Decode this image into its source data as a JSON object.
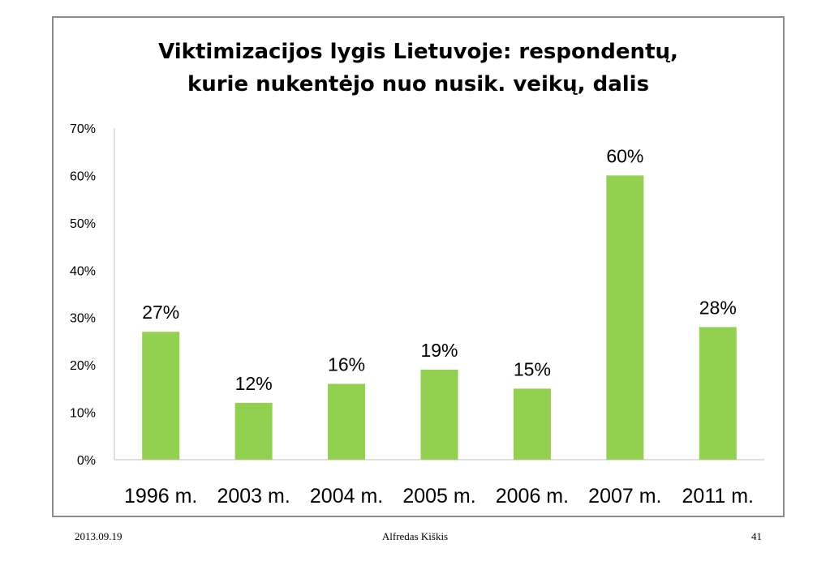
{
  "chart_data": {
    "type": "bar",
    "title_lines": [
      "Viktimizacijos lygis Lietuvoje: respondentų,",
      "kurie nukentėjo nuo nusik. veikų, dalis"
    ],
    "categories": [
      "1996 m.",
      "2003 m.",
      "2004 m.",
      "2005 m.",
      "2006 m.",
      "2007 m.",
      "2011 m."
    ],
    "values": [
      27,
      12,
      16,
      19,
      15,
      60,
      28
    ],
    "data_labels": [
      "27%",
      "12%",
      "16%",
      "19%",
      "15%",
      "60%",
      "28%"
    ],
    "y_ticks": [
      "0%",
      "10%",
      "20%",
      "30%",
      "40%",
      "50%",
      "60%",
      "70%"
    ],
    "ylim": [
      0,
      70
    ],
    "grid": false,
    "legend": "none",
    "bar_color": "#92d050"
  },
  "footer": {
    "date": "2013.09.19",
    "author": "Alfredas Kiškis",
    "page_number": "41"
  }
}
